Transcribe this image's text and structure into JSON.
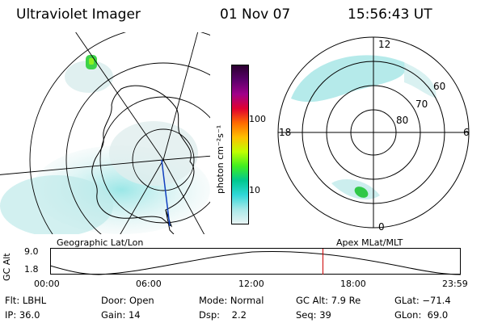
{
  "header": {
    "title": "Ultraviolet Imager",
    "date": "01 Nov 07",
    "time": "15:56:43 UT"
  },
  "colorbar": {
    "unit_label": "photon cm⁻²s⁻¹",
    "ticks": [
      "100",
      "10"
    ],
    "colors": [
      "#2b0030",
      "#5a006a",
      "#a0008a",
      "#e00030",
      "#ff6a00",
      "#ffc000",
      "#c0ff00",
      "#40ee20",
      "#00c890",
      "#30d8d8",
      "#a8e8e8",
      "#e8f4f4"
    ]
  },
  "geo_map": {
    "label": "Geographic Lat/Lon"
  },
  "polar_plot": {
    "label": "Apex MLat/MLT",
    "mlt_labels": {
      "top": "12",
      "bottom": "0",
      "left": "18",
      "right": "6"
    },
    "lat_labels": [
      "60",
      "70",
      "80"
    ]
  },
  "altitude_plot": {
    "ylabel": "GC Alt",
    "yticks": [
      "9.0",
      "1.8"
    ],
    "xticks": [
      "00:00",
      "06:00",
      "12:00",
      "18:00",
      "23:59"
    ],
    "marker_time": "15:56:43"
  },
  "info": {
    "row1": [
      "Flt: LBHL",
      "Door: Open",
      "Mode: Normal",
      "GC Alt: 7.9 Re",
      "GLat: −71.4"
    ],
    "row2": [
      "IP: 36.0",
      "Gain: 14",
      "Dsp:    2.2",
      "Seq: 39",
      "GLon:  69.0"
    ]
  }
}
